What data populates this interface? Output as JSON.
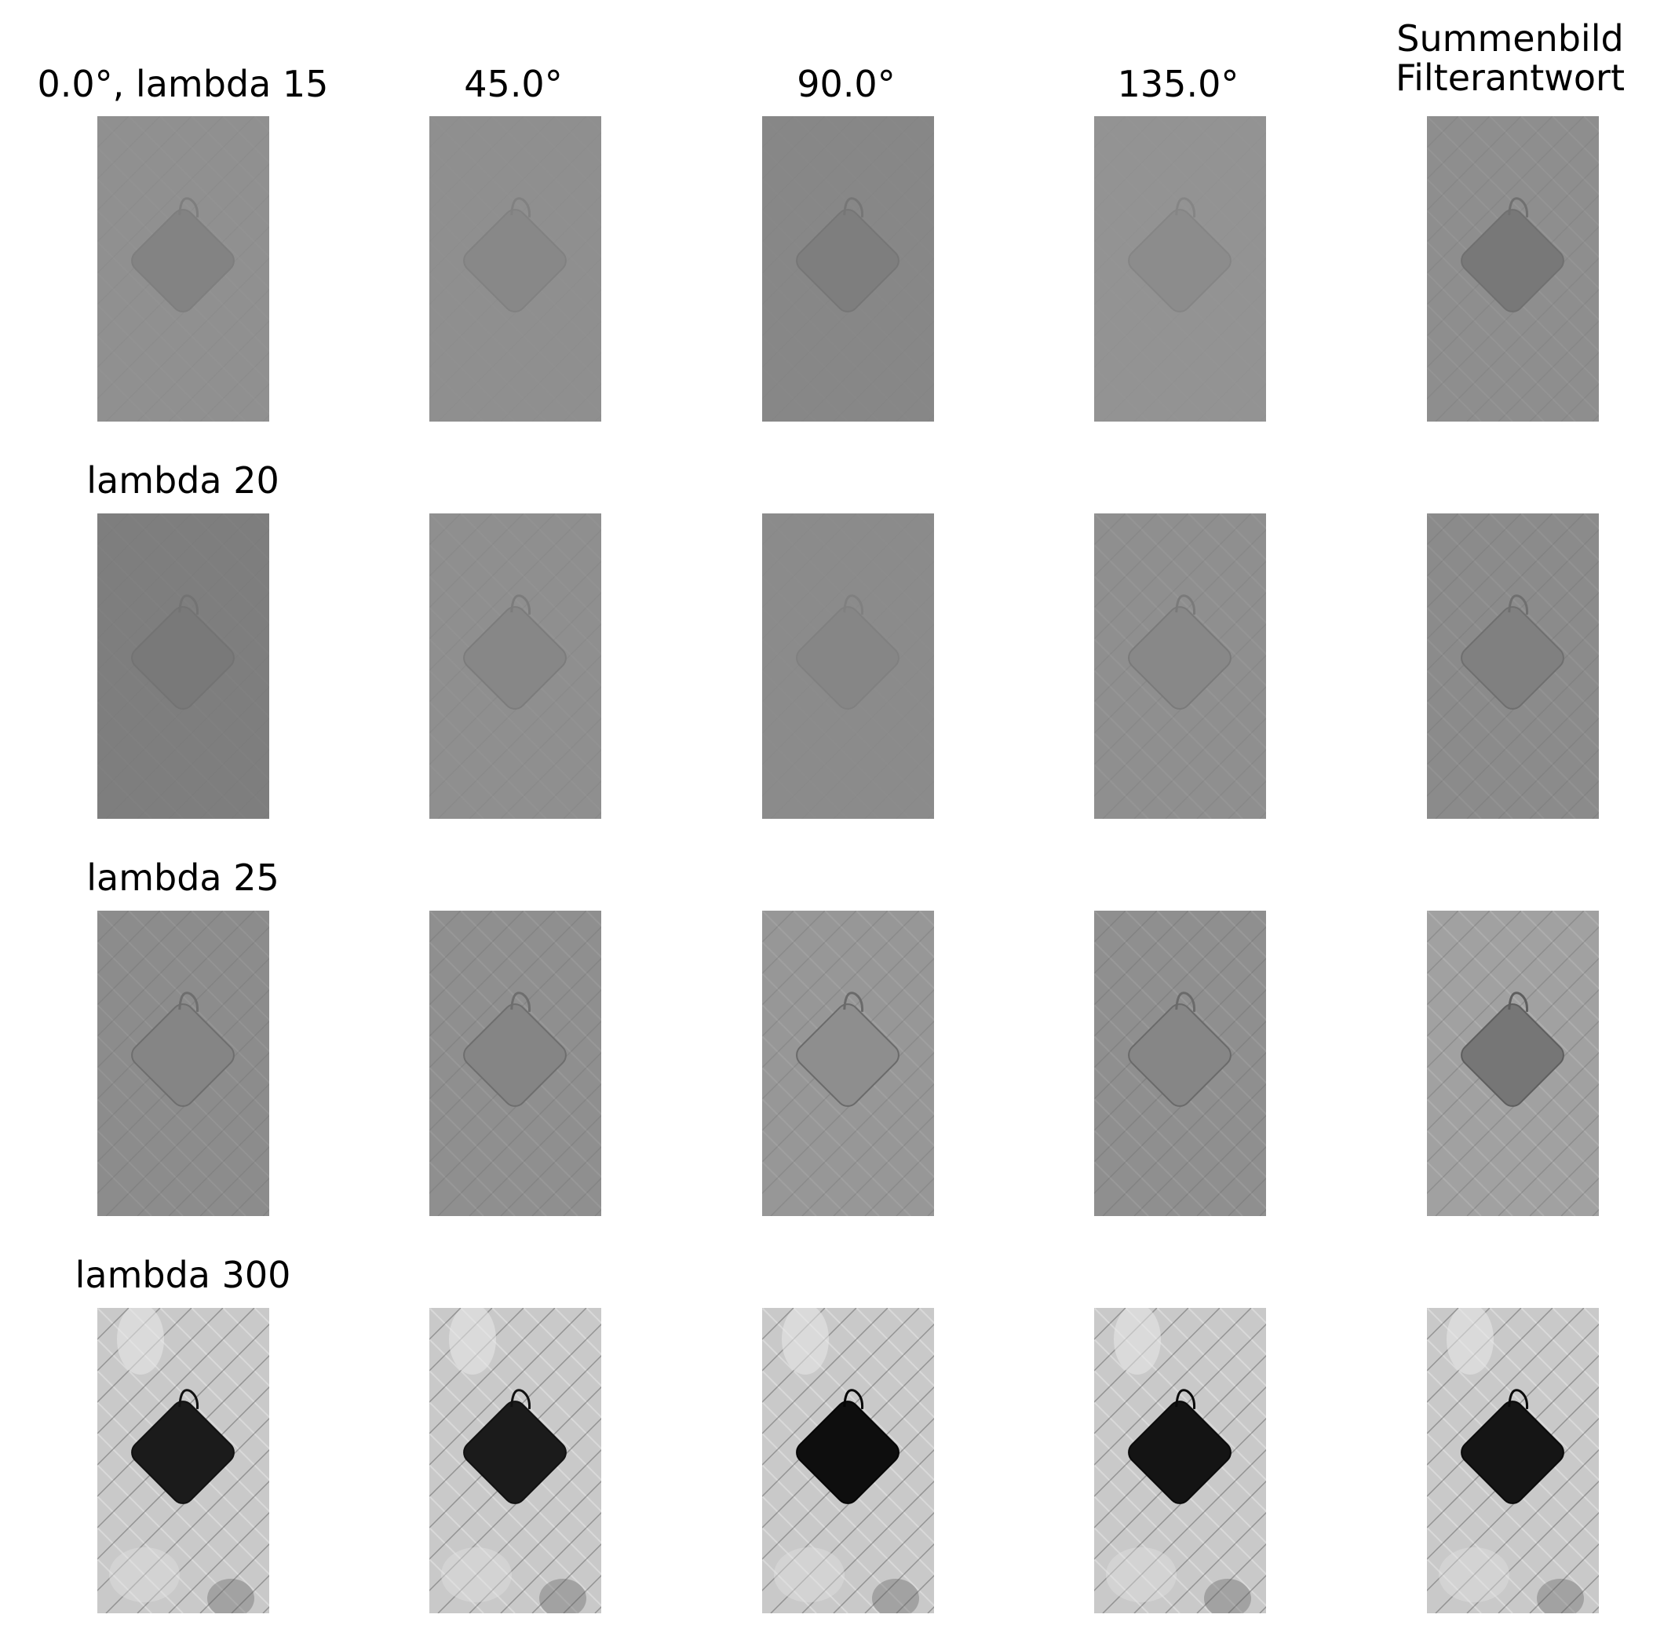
{
  "figure": {
    "column_titles": [
      "0.0°, lambda 15",
      "45.0°",
      "90.0°",
      "135.0°",
      "Summenbild\nFilterantwort"
    ],
    "row_titles": [
      "lambda 20",
      "lambda 25",
      "lambda 300"
    ],
    "panel_content": "bag-on-parquet-floor",
    "panels": [
      [
        {
          "bg": "#909090",
          "bag": "#838383",
          "edge": "#7e7e7e",
          "texture": 0.04
        },
        {
          "bg": "#8f8f8f",
          "bag": "#888888",
          "edge": "#818181",
          "texture": 0.02
        },
        {
          "bg": "#878787",
          "bag": "#7e7e7e",
          "edge": "#767676",
          "texture": 0.02
        },
        {
          "bg": "#939393",
          "bag": "#8c8c8c",
          "edge": "#858585",
          "texture": 0.02
        },
        {
          "bg": "#8e8e8e",
          "bag": "#787878",
          "edge": "#707070",
          "texture": 0.1
        }
      ],
      [
        {
          "bg": "#7e7e7e",
          "bag": "#797979",
          "edge": "#737373",
          "texture": 0.02
        },
        {
          "bg": "#8f8f8f",
          "bag": "#878787",
          "edge": "#7c7c7c",
          "texture": 0.06
        },
        {
          "bg": "#8b8b8b",
          "bag": "#868686",
          "edge": "#808080",
          "texture": 0.02
        },
        {
          "bg": "#8f8f8f",
          "bag": "#888888",
          "edge": "#7a7a7a",
          "texture": 0.1
        },
        {
          "bg": "#8b8b8b",
          "bag": "#808080",
          "edge": "#6f6f6f",
          "texture": 0.12
        }
      ],
      [
        {
          "bg": "#8c8c8c",
          "bag": "#858585",
          "edge": "#6e6e6e",
          "texture": 0.14
        },
        {
          "bg": "#8f8f8f",
          "bag": "#858585",
          "edge": "#6e6e6e",
          "texture": 0.16
        },
        {
          "bg": "#979797",
          "bag": "#8e8e8e",
          "edge": "#6a6a6a",
          "texture": 0.18
        },
        {
          "bg": "#8f8f8f",
          "bag": "#868686",
          "edge": "#6a6a6a",
          "texture": 0.18
        },
        {
          "bg": "#a1a1a1",
          "bag": "#767676",
          "edge": "#5e5e5e",
          "texture": 0.26
        }
      ],
      [
        {
          "bg": "#c9c9c9",
          "bag": "#1b1b1b",
          "edge": "#111111",
          "texture": 0.6
        },
        {
          "bg": "#c9c9c9",
          "bag": "#1b1b1b",
          "edge": "#111111",
          "texture": 0.6
        },
        {
          "bg": "#c9c9c9",
          "bag": "#0e0e0e",
          "edge": "#050505",
          "texture": 0.6
        },
        {
          "bg": "#c9c9c9",
          "bag": "#141414",
          "edge": "#0a0a0a",
          "texture": 0.6
        },
        {
          "bg": "#c9c9c9",
          "bag": "#151515",
          "edge": "#0a0a0a",
          "texture": 0.6
        }
      ]
    ]
  }
}
